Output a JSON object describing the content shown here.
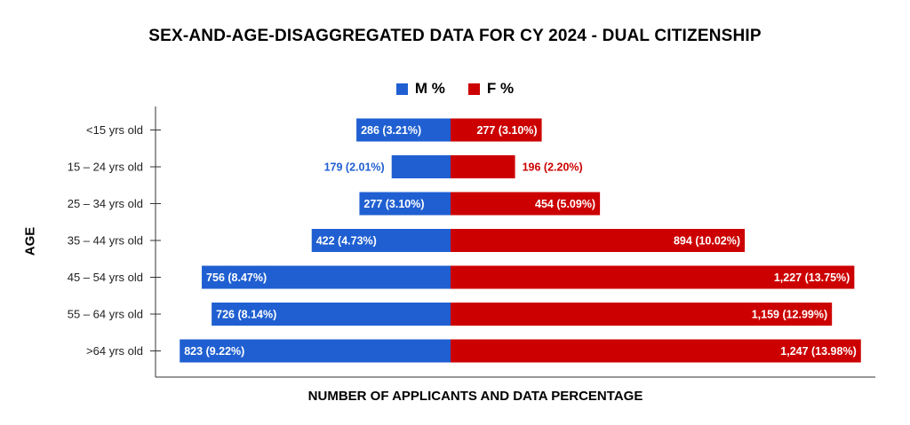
{
  "chart_data": {
    "type": "bar",
    "orientation": "horizontal",
    "layout": "population-pyramid",
    "title": "SEX-AND-AGE-DISAGGREGATED DATA FOR CY 2024 - DUAL CITIZENSHIP",
    "xlabel": "NUMBER OF APPLICANTS AND DATA PERCENTAGE",
    "ylabel": "AGE",
    "legend_position": "top-center",
    "grid": false,
    "categories": [
      "<15 yrs old",
      "15 – 24 yrs old",
      "25 – 34 yrs old",
      "35 – 44 yrs old",
      "45 – 54 yrs old",
      "55 – 64 yrs old",
      ">64 yrs old"
    ],
    "series": [
      {
        "name": "M %",
        "color": "#1f5fd1",
        "side": "left",
        "values": [
          286,
          179,
          277,
          422,
          756,
          726,
          823
        ],
        "labels": [
          "286  (3.21%)",
          "179  (2.01%)",
          "277  (3.10%)",
          "422  (4.73%)",
          "756  (8.47%)",
          "726  (8.14%)",
          "823  (9.22%)"
        ]
      },
      {
        "name": "F %",
        "color": "#cc0000",
        "side": "right",
        "values": [
          277,
          196,
          454,
          894,
          1227,
          1159,
          1247
        ],
        "labels": [
          "277  (3.10%)",
          "196  (2.20%)",
          "454  (5.09%)",
          "894  (10.02%)",
          "1,227  (13.75%)",
          "1,159  (12.99%)",
          "1,247  (13.98%)"
        ]
      }
    ]
  }
}
